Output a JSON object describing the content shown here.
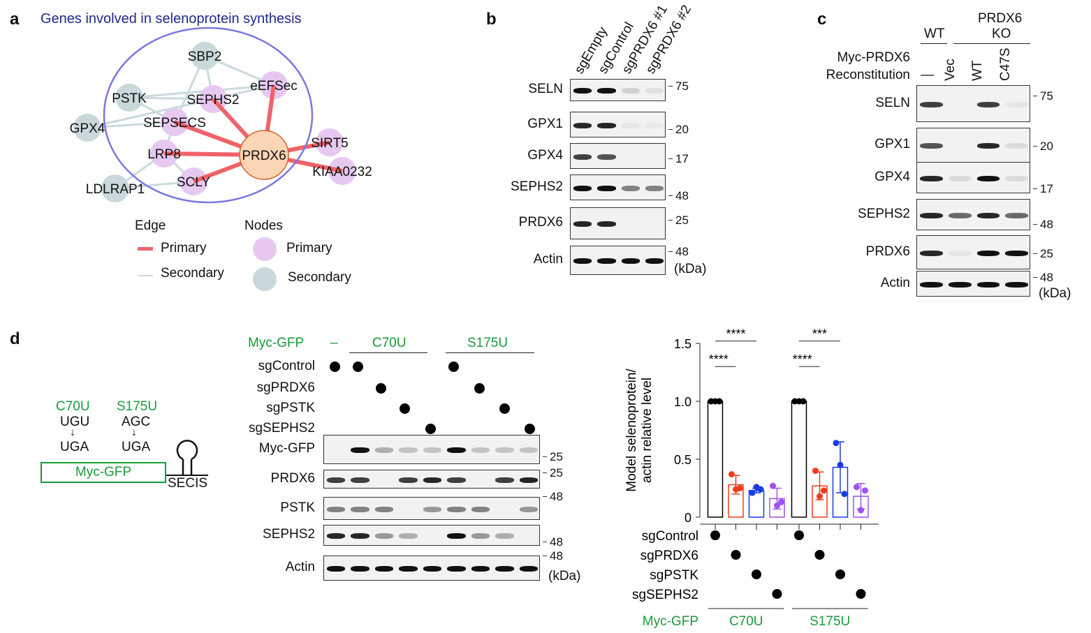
{
  "panel_a": {
    "letter": "a",
    "title": "Genes involved in selenoprotein synthesis",
    "nodes": [
      {
        "name": "SBP2",
        "type": "secondary"
      },
      {
        "name": "eEFSec",
        "type": "primary"
      },
      {
        "name": "PSTK",
        "type": "secondary"
      },
      {
        "name": "SEPHS2",
        "type": "primary"
      },
      {
        "name": "GPX4",
        "type": "secondary"
      },
      {
        "name": "SEPSECS",
        "type": "primary"
      },
      {
        "name": "LRP8",
        "type": "primary"
      },
      {
        "name": "PRDX6",
        "type": "center"
      },
      {
        "name": "SIRT5",
        "type": "primary"
      },
      {
        "name": "KIAA0232",
        "type": "primary"
      },
      {
        "name": "SCLY",
        "type": "primary"
      },
      {
        "name": "LDLRAP1",
        "type": "secondary"
      }
    ],
    "edges_primary": [
      [
        "PRDX6",
        "SEPHS2"
      ],
      [
        "PRDX6",
        "eEFSec"
      ],
      [
        "PRDX6",
        "SEPSECS"
      ],
      [
        "PRDX6",
        "LRP8"
      ],
      [
        "PRDX6",
        "SCLY"
      ],
      [
        "PRDX6",
        "SIRT5"
      ],
      [
        "PRDX6",
        "KIAA0232"
      ]
    ],
    "edges_secondary": [
      [
        "SBP2",
        "SEPHS2"
      ],
      [
        "SBP2",
        "eEFSec"
      ],
      [
        "SBP2",
        "SEPSECS"
      ],
      [
        "PSTK",
        "SEPHS2"
      ],
      [
        "PSTK",
        "eEFSec"
      ],
      [
        "PSTK",
        "SEPSECS"
      ],
      [
        "GPX4",
        "SEPHS2"
      ],
      [
        "GPX4",
        "eEFSec"
      ],
      [
        "GPX4",
        "SEPSECS"
      ],
      [
        "SEPSECS",
        "LRP8"
      ],
      [
        "LRP8",
        "LDLRAP1"
      ],
      [
        "LRP8",
        "SCLY"
      ],
      [
        "LDLRAP1",
        "SCLY"
      ]
    ],
    "legend": {
      "edge_title": "Edge",
      "nodes_title": "Nodes",
      "primary": "Primary",
      "secondary": "Secondary"
    },
    "colors": {
      "primary_edge": "#f0626a",
      "secondary_edge": "#c9dadc",
      "primary_node": "#e6c8f0",
      "secondary_node": "#c8d8db",
      "center_node": "#fbd5b5",
      "center_stroke": "#d0642a",
      "ellipse": "#7b78e0"
    }
  },
  "panel_b": {
    "letter": "b",
    "lanes": [
      "sgEmpty",
      "sgControl",
      "sgPRDX6 #1",
      "sgPRDX6 #2"
    ],
    "rows": [
      {
        "label": "SELN",
        "marker": "75",
        "bands": [
          1,
          1,
          0.15,
          0.08
        ]
      },
      {
        "label": "GPX1",
        "marker": "20",
        "bands": [
          0.9,
          0.9,
          0.05,
          0.04
        ]
      },
      {
        "label": "GPX4",
        "marker": "17",
        "bands": [
          0.8,
          0.7,
          0,
          0
        ]
      },
      {
        "label": "SEPHS2",
        "marker": "48",
        "bands": [
          1,
          1,
          0.5,
          0.5
        ]
      },
      {
        "label": "PRDX6",
        "marker": "25",
        "bands": [
          0.9,
          0.9,
          0,
          0
        ]
      },
      {
        "label": "Actin",
        "marker": "48",
        "bands": [
          1,
          1,
          1,
          1
        ]
      }
    ],
    "unit": "(kDa)"
  },
  "panel_c": {
    "letter": "c",
    "wt": "WT",
    "ko": "PRDX6\nKO",
    "ko_line1": "PRDX6",
    "ko_line2": "KO",
    "recon_line1": "Myc-PRDX6",
    "recon_line2": "Reconstitution",
    "lanes": [
      "—",
      "Vec",
      "WT",
      "C47S"
    ],
    "rows": [
      {
        "label": "SELN",
        "marker": "75",
        "bands": [
          0.8,
          0,
          0.8,
          0.05
        ]
      },
      {
        "label": "GPX1",
        "marker": "20",
        "bands": [
          0.7,
          0,
          0.9,
          0.1
        ]
      },
      {
        "label": "GPX4",
        "marker": "17",
        "bands": [
          0.9,
          0.1,
          1,
          0.1
        ]
      },
      {
        "label": "SEPHS2",
        "marker": "48",
        "bands": [
          0.9,
          0.6,
          0.9,
          0.6
        ]
      },
      {
        "label": "PRDX6",
        "marker": "25",
        "bands": [
          0.9,
          0.05,
          1,
          1
        ]
      },
      {
        "label": "Actin",
        "marker": "48",
        "bands": [
          1,
          1,
          1,
          1
        ]
      }
    ],
    "unit": "(kDa)"
  },
  "panel_d": {
    "letter": "d",
    "construct": {
      "mut1": "C70U",
      "mut2": "S175U",
      "codon1": "UGU",
      "codon2": "AGC",
      "uga": "UGA",
      "box": "Myc-GFP",
      "secis": "SECIS"
    },
    "myc_gfp_label": "Myc-GFP",
    "dash": "–",
    "c70u": "C70U",
    "s175u": "S175U",
    "guides": [
      "sgControl",
      "sgPRDX6",
      "sgPSTK",
      "sgSEPHS2"
    ],
    "lane_guides": [
      -1,
      0,
      1,
      2,
      3,
      0,
      1,
      2,
      3
    ],
    "rows": [
      {
        "label": "Myc-GFP",
        "marker": "25",
        "bands": [
          0,
          1,
          0.3,
          0.2,
          0.2,
          1,
          0.2,
          0.2,
          0.2
        ]
      },
      {
        "label": "PRDX6",
        "marker": "25",
        "bands": [
          0.8,
          0.8,
          0,
          0.8,
          0.9,
          0.8,
          0,
          0.8,
          0.9
        ]
      },
      {
        "label": "PSTK",
        "marker": "48",
        "bands": [
          0.5,
          0.5,
          0.5,
          0,
          0.4,
          0.5,
          0.5,
          0,
          0.4
        ]
      },
      {
        "label": "SEPHS2",
        "marker": "48",
        "bands": [
          0.9,
          0.9,
          0.4,
          0.3,
          0,
          1,
          0.4,
          0.3,
          0
        ]
      },
      {
        "label": "Actin",
        "marker": "48",
        "bands": [
          1,
          1,
          1,
          1,
          1,
          1,
          1,
          1,
          1
        ]
      }
    ],
    "unit": "(kDa)"
  },
  "chart_data": {
    "type": "bar",
    "ylabel_line1": "Model selenoprotein/",
    "ylabel_line2": "actin relative level",
    "ylim": [
      0,
      1.5
    ],
    "yticks": [
      "0",
      "0.5",
      "1.0",
      "1.5"
    ],
    "groups": [
      "C70U",
      "S175U"
    ],
    "group_axis_label": "Myc-GFP",
    "categories": [
      "sgControl",
      "sgPRDX6",
      "sgPSTK",
      "sgSEPHS2"
    ],
    "colors": [
      "#000000",
      "#f03c1e",
      "#1a3ce6",
      "#a050f0"
    ],
    "series": [
      {
        "name": "C70U",
        "means": [
          1,
          0.28,
          0.23,
          0.16
        ],
        "sd": [
          0,
          0.08,
          0.02,
          0.09
        ],
        "points": [
          [
            1,
            1,
            1
          ],
          [
            0.37,
            0.24,
            0.25
          ],
          [
            0.21,
            0.26,
            0.24
          ],
          [
            0.27,
            0.1,
            0.13
          ]
        ]
      },
      {
        "name": "S175U",
        "means": [
          1,
          0.27,
          0.43,
          0.18
        ],
        "sd": [
          0,
          0.12,
          0.22,
          0.11
        ],
        "points": [
          [
            1,
            1,
            1
          ],
          [
            0.4,
            0.18,
            0.23
          ],
          [
            0.64,
            0.45,
            0.2
          ],
          [
            0.26,
            0.06,
            0.23
          ]
        ]
      }
    ],
    "significance": [
      {
        "group": "C70U",
        "vs": "sgPRDX6",
        "label": "****"
      },
      {
        "group": "C70U",
        "vs": "sgPSTK",
        "label": "****"
      },
      {
        "group": "C70U",
        "vs": "sgSEPHS2",
        "label": "****"
      },
      {
        "group": "S175U",
        "vs": "sgPRDX6",
        "label": "****"
      },
      {
        "group": "S175U",
        "vs": "sgPSTK",
        "label": "***"
      },
      {
        "group": "S175U",
        "vs": "sgSEPHS2",
        "label": "****"
      }
    ]
  }
}
